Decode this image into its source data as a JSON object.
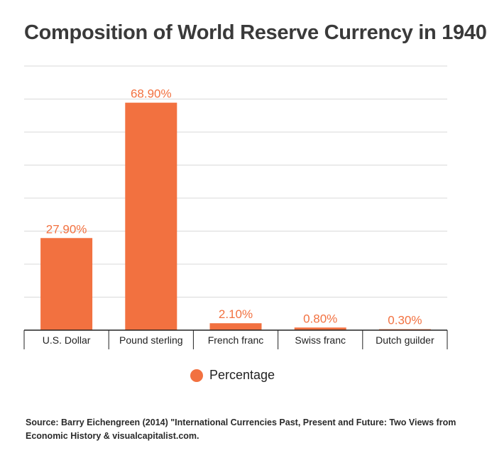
{
  "title": "Composition of World Reserve Currency in 1940",
  "chart_data": {
    "type": "bar",
    "categories": [
      "U.S. Dollar",
      "Pound sterling",
      "French franc",
      "Swiss franc",
      "Dutch guilder"
    ],
    "series": [
      {
        "name": "Percentage",
        "values": [
          27.9,
          68.9,
          2.1,
          0.8,
          0.3
        ]
      }
    ],
    "data_labels": [
      "27.90%",
      "68.90%",
      "2.10%",
      "0.80%",
      "0.30%"
    ],
    "ylim": [
      0,
      80
    ],
    "grid": true,
    "legend_position": "bottom",
    "colors": {
      "bar": "#f27140",
      "label": "#f27140",
      "grid": "#d9d9d9",
      "axis": "#222222"
    }
  },
  "legend": {
    "label": "Percentage"
  },
  "source": "Source: Barry Eichengreen (2014) \"International Currencies Past, Present and Future: Two Views from Economic History & visualcapitalist.com."
}
